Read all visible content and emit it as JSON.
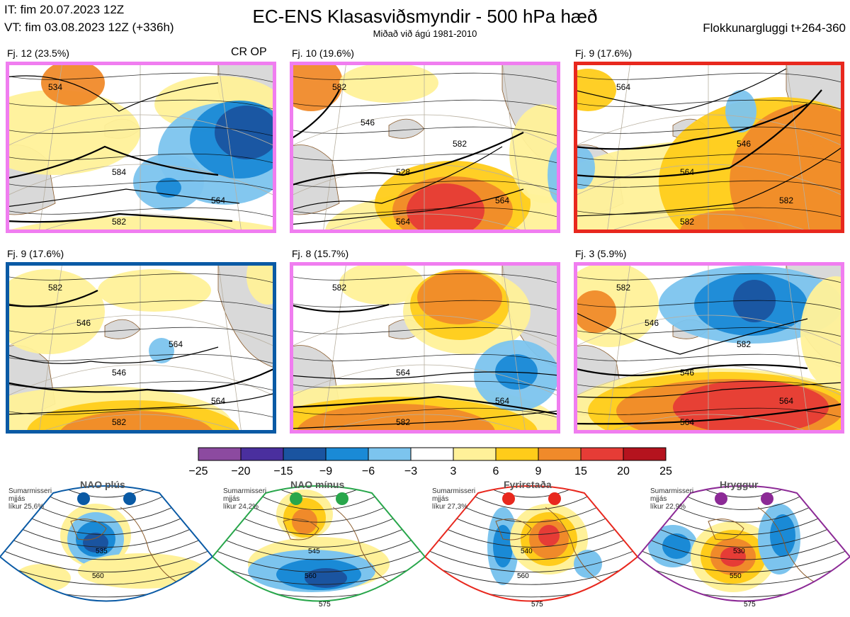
{
  "header": {
    "it": "IT: fim 20.07.2023 12Z",
    "vt": "VT: fim 03.08.2023 12Z  (+336h)",
    "title": "EC-ENS Klasasviðsmyndir - 500 hPa hæð",
    "subtitle": "Miðað við ágú 1981-2010",
    "window": "Flokkunargluggi t+264-360"
  },
  "colors": {
    "pink": "#f07df0",
    "red": "#e8281e",
    "blue": "#0a5aa5",
    "green": "#28a64b",
    "purple": "#8c2a96",
    "land": "#d9d9d9",
    "coast": "#8a5a2a"
  },
  "panels": [
    {
      "label": "Fj. 12 (23.5%)",
      "extra": "CR OP",
      "frame": "#f07df0",
      "contours": [
        "584",
        "564",
        "582",
        "534"
      ],
      "blobs": "a"
    },
    {
      "label": "Fj. 10 (19.6%)",
      "extra": "",
      "frame": "#f07df0",
      "contours": [
        "528",
        "564",
        "564",
        "582",
        "582",
        "546"
      ],
      "blobs": "b"
    },
    {
      "label": "Fj. 9 (17.6%)",
      "extra": "",
      "frame": "#e8281e",
      "contours": [
        "564",
        "582",
        "582",
        "564",
        "546"
      ],
      "blobs": "c"
    },
    {
      "label": "Fj. 9 (17.6%)",
      "extra": "",
      "frame": "#0a5aa5",
      "contours": [
        "546",
        "564",
        "582",
        "582",
        "564",
        "546"
      ],
      "blobs": "d"
    },
    {
      "label": "Fj. 8 (15.7%)",
      "extra": "",
      "frame": "#f07df0",
      "contours": [
        "564",
        "564",
        "582",
        "582"
      ],
      "blobs": "e"
    },
    {
      "label": "Fj. 3 (5.9%)",
      "extra": "",
      "frame": "#f07df0",
      "contours": [
        "546",
        "564",
        "564",
        "582",
        "582",
        "546"
      ],
      "blobs": "f"
    }
  ],
  "chart_data": {
    "type": "heatmap",
    "title": "EC-ENS Klasasviðsmyndir - 500 hPa hæð",
    "colorbar": {
      "ticks": [
        "−25",
        "−20",
        "−15",
        "−9",
        "−6",
        "−3",
        "3",
        "6",
        "9",
        "15",
        "20",
        "25"
      ],
      "colors": [
        "#8c4aa0",
        "#4a2f9e",
        "#1a54a0",
        "#1a8ad6",
        "#7cc4ee",
        "#ffffff",
        "#fff199",
        "#ffcc1a",
        "#f08a2a",
        "#e63c36",
        "#b5131e"
      ]
    }
  },
  "regimes": [
    {
      "name": "NAO plús",
      "text": [
        "Sumarmisseri",
        "mjjás",
        "líkur 25,6%"
      ],
      "color": "#0a5aa5",
      "contours": [
        "535",
        "560"
      ]
    },
    {
      "name": "NAO mínus",
      "text": [
        "Sumarmisseri",
        "mjjás",
        "líkur 24,2%"
      ],
      "color": "#28a64b",
      "contours": [
        "545",
        "560",
        "575"
      ]
    },
    {
      "name": "Fyrirstaða",
      "text": [
        "Sumarmisseri",
        "mjjás",
        "líkur 27,3%"
      ],
      "color": "#e8281e",
      "contours": [
        "540",
        "560",
        "575"
      ]
    },
    {
      "name": "Hryggur",
      "text": [
        "Sumarmisseri",
        "mjjás",
        "líkur 22,9%"
      ],
      "color": "#8c2a96",
      "contours": [
        "530",
        "550",
        "575"
      ]
    }
  ]
}
